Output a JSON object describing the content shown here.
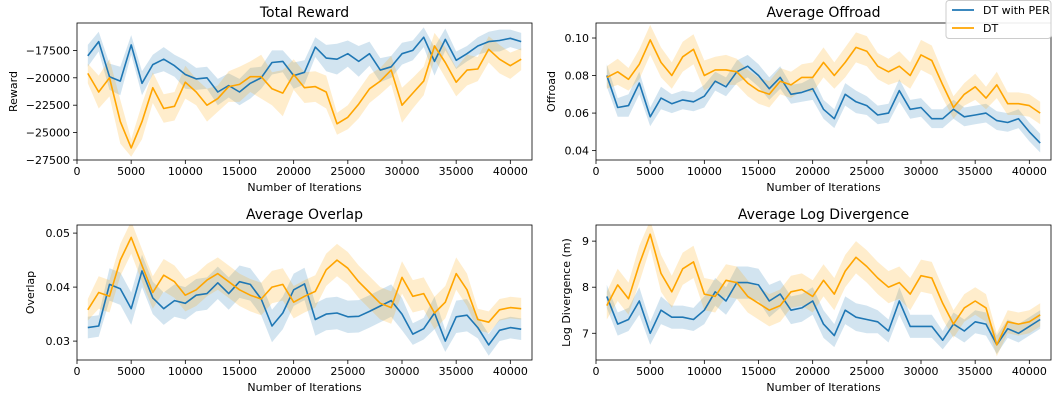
{
  "colors": {
    "blue": "#1f77b4",
    "orange": "#ffa500"
  },
  "legend": {
    "placement": "top-right",
    "entries": [
      {
        "label": "DT with PER",
        "color": "#1f77b4"
      },
      {
        "label": "DT",
        "color": "#ffa500"
      }
    ]
  },
  "chart_data": [
    {
      "type": "line",
      "title": "Total Reward",
      "xlabel": "Number of Iterations",
      "ylabel": "Reward",
      "xlim": [
        0,
        42000
      ],
      "ylim": [
        -27500,
        -15000
      ],
      "xticks": [
        0,
        5000,
        10000,
        15000,
        20000,
        25000,
        30000,
        35000,
        40000
      ],
      "yticks": [
        -27500,
        -25000,
        -22500,
        -20000,
        -17500
      ],
      "grid": false,
      "x": [
        1000,
        2000,
        3000,
        4000,
        5000,
        6000,
        7000,
        8000,
        9000,
        10000,
        11000,
        12000,
        13000,
        14000,
        15000,
        16000,
        17000,
        18000,
        19000,
        20000,
        21000,
        22000,
        23000,
        24000,
        25000,
        26000,
        27000,
        28000,
        29000,
        30000,
        31000,
        32000,
        33000,
        34000,
        35000,
        36000,
        37000,
        38000,
        39000,
        40000,
        41000
      ],
      "series": [
        {
          "name": "DT with PER",
          "color": "#1f77b4",
          "values": [
            -18000,
            -16700,
            -19900,
            -20300,
            -17000,
            -20500,
            -18800,
            -18300,
            -18900,
            -19700,
            -20100,
            -20000,
            -21300,
            -20700,
            -21300,
            -20500,
            -20000,
            -18600,
            -18500,
            -19800,
            -19500,
            -17200,
            -18200,
            -18300,
            -17800,
            -18500,
            -17800,
            -19300,
            -19000,
            -17800,
            -17500,
            -16300,
            -18500,
            -16500,
            -18400,
            -17800,
            -17100,
            -16700,
            -16600,
            -16400,
            -16700
          ],
          "band": [
            1000,
            900,
            1200,
            1300,
            900,
            1100,
            900,
            1100,
            1000,
            1300,
            1000,
            1000,
            1200,
            1100,
            1200,
            1400,
            1000,
            1100,
            1000,
            1200,
            1100,
            900,
            1200,
            1400,
            1200,
            1400,
            1100,
            1100,
            1000,
            1000,
            900,
            900,
            1300,
            1000,
            800,
            700,
            800,
            900,
            1000,
            800,
            800
          ]
        },
        {
          "name": "DT",
          "color": "#ffa500",
          "values": [
            -19600,
            -21300,
            -20000,
            -24000,
            -26400,
            -24000,
            -20900,
            -22800,
            -22600,
            -20400,
            -21300,
            -22500,
            -21900,
            -20800,
            -20600,
            -19900,
            -19900,
            -21000,
            -21400,
            -19700,
            -20900,
            -20800,
            -21300,
            -24200,
            -23600,
            -22400,
            -21000,
            -20300,
            -19300,
            -22500,
            -21400,
            -20300,
            -17100,
            -18600,
            -20400,
            -19300,
            -19200,
            -17400,
            -18300,
            -18900,
            -18300
          ],
          "band": [
            900,
            1500,
            1700,
            2000,
            800,
            1600,
            1400,
            1300,
            1300,
            1500,
            1200,
            1500,
            1200,
            1400,
            1600,
            1400,
            2000,
            1500,
            2100,
            1400,
            1400,
            1400,
            1500,
            1000,
            1100,
            1300,
            1300,
            1200,
            1300,
            1600,
            1400,
            1300,
            1200,
            1400,
            1300,
            1400,
            1100,
            1200,
            1300,
            1200,
            1000
          ]
        }
      ]
    },
    {
      "type": "line",
      "title": "Average Offroad",
      "xlabel": "Number of Iterations",
      "ylabel": "Offroad",
      "xlim": [
        0,
        42000
      ],
      "ylim": [
        0.035,
        0.108
      ],
      "xticks": [
        0,
        5000,
        10000,
        15000,
        20000,
        25000,
        30000,
        35000,
        40000
      ],
      "yticks": [
        0.04,
        0.06,
        0.08,
        0.1
      ],
      "ytick_labels": [
        "0.04",
        "0.06",
        "0.08",
        "0.10"
      ],
      "grid": false,
      "x": [
        1000,
        2000,
        3000,
        4000,
        5000,
        6000,
        7000,
        8000,
        9000,
        10000,
        11000,
        12000,
        13000,
        14000,
        15000,
        16000,
        17000,
        18000,
        19000,
        20000,
        21000,
        22000,
        23000,
        24000,
        25000,
        26000,
        27000,
        28000,
        29000,
        30000,
        31000,
        32000,
        33000,
        34000,
        35000,
        36000,
        37000,
        38000,
        39000,
        40000,
        41000
      ],
      "series": [
        {
          "name": "DT with PER",
          "color": "#1f77b4",
          "values": [
            0.08,
            0.063,
            0.064,
            0.076,
            0.058,
            0.068,
            0.065,
            0.067,
            0.066,
            0.069,
            0.077,
            0.074,
            0.082,
            0.085,
            0.08,
            0.073,
            0.079,
            0.07,
            0.071,
            0.073,
            0.062,
            0.057,
            0.07,
            0.066,
            0.064,
            0.059,
            0.06,
            0.072,
            0.062,
            0.063,
            0.057,
            0.057,
            0.062,
            0.058,
            0.059,
            0.06,
            0.056,
            0.055,
            0.057,
            0.05,
            0.044
          ],
          "band": [
            0.006,
            0.005,
            0.006,
            0.006,
            0.005,
            0.006,
            0.005,
            0.005,
            0.005,
            0.006,
            0.005,
            0.005,
            0.006,
            0.006,
            0.006,
            0.006,
            0.006,
            0.005,
            0.005,
            0.006,
            0.005,
            0.005,
            0.006,
            0.006,
            0.005,
            0.005,
            0.005,
            0.006,
            0.005,
            0.005,
            0.005,
            0.005,
            0.005,
            0.005,
            0.005,
            0.005,
            0.005,
            0.005,
            0.005,
            0.005,
            0.005
          ]
        },
        {
          "name": "DT",
          "color": "#ffa500",
          "values": [
            0.079,
            0.082,
            0.078,
            0.086,
            0.099,
            0.087,
            0.08,
            0.09,
            0.094,
            0.08,
            0.083,
            0.083,
            0.082,
            0.076,
            0.072,
            0.07,
            0.077,
            0.075,
            0.079,
            0.079,
            0.087,
            0.08,
            0.087,
            0.095,
            0.093,
            0.085,
            0.082,
            0.085,
            0.08,
            0.091,
            0.088,
            0.075,
            0.063,
            0.07,
            0.074,
            0.068,
            0.075,
            0.065,
            0.065,
            0.064,
            0.06
          ],
          "band": [
            0.006,
            0.007,
            0.006,
            0.008,
            0.008,
            0.008,
            0.007,
            0.008,
            0.008,
            0.008,
            0.007,
            0.008,
            0.007,
            0.007,
            0.007,
            0.007,
            0.007,
            0.007,
            0.007,
            0.008,
            0.008,
            0.007,
            0.008,
            0.008,
            0.008,
            0.007,
            0.007,
            0.008,
            0.007,
            0.008,
            0.008,
            0.007,
            0.006,
            0.006,
            0.007,
            0.006,
            0.007,
            0.006,
            0.006,
            0.006,
            0.006
          ]
        }
      ]
    },
    {
      "type": "line",
      "title": "Average Overlap",
      "xlabel": "Number of Iterations",
      "ylabel": "Overlap",
      "xlim": [
        0,
        42000
      ],
      "ylim": [
        0.0265,
        0.0515
      ],
      "xticks": [
        0,
        5000,
        10000,
        15000,
        20000,
        25000,
        30000,
        35000,
        40000
      ],
      "yticks": [
        0.03,
        0.04,
        0.05
      ],
      "ytick_labels": [
        "0.03",
        "0.04",
        "0.05"
      ],
      "grid": false,
      "x": [
        1000,
        2000,
        3000,
        4000,
        5000,
        6000,
        7000,
        8000,
        9000,
        10000,
        11000,
        12000,
        13000,
        14000,
        15000,
        16000,
        17000,
        18000,
        19000,
        20000,
        21000,
        22000,
        23000,
        24000,
        25000,
        26000,
        27000,
        28000,
        29000,
        30000,
        31000,
        32000,
        33000,
        34000,
        35000,
        36000,
        37000,
        38000,
        39000,
        40000,
        41000
      ],
      "series": [
        {
          "name": "DT with PER",
          "color": "#1f77b4",
          "values": [
            0.0325,
            0.0328,
            0.0405,
            0.0397,
            0.036,
            0.043,
            0.038,
            0.036,
            0.0375,
            0.037,
            0.0385,
            0.0388,
            0.0408,
            0.0388,
            0.041,
            0.0405,
            0.0378,
            0.0328,
            0.0352,
            0.0395,
            0.0406,
            0.034,
            0.035,
            0.0352,
            0.0345,
            0.0346,
            0.0355,
            0.0365,
            0.0375,
            0.035,
            0.0313,
            0.0323,
            0.0352,
            0.03,
            0.0345,
            0.0348,
            0.0325,
            0.0293,
            0.032,
            0.0325,
            0.0322
          ],
          "band": [
            0.002,
            0.002,
            0.003,
            0.003,
            0.003,
            0.003,
            0.003,
            0.003,
            0.003,
            0.003,
            0.003,
            0.003,
            0.003,
            0.003,
            0.003,
            0.003,
            0.003,
            0.003,
            0.003,
            0.003,
            0.003,
            0.003,
            0.003,
            0.003,
            0.003,
            0.003,
            0.003,
            0.003,
            0.003,
            0.003,
            0.002,
            0.002,
            0.003,
            0.002,
            0.003,
            0.003,
            0.002,
            0.002,
            0.002,
            0.002,
            0.002
          ]
        },
        {
          "name": "DT",
          "color": "#ffa500",
          "values": [
            0.0358,
            0.039,
            0.0383,
            0.045,
            0.0492,
            0.044,
            0.039,
            0.0422,
            0.041,
            0.0385,
            0.0395,
            0.0413,
            0.0425,
            0.041,
            0.0395,
            0.0385,
            0.0378,
            0.04,
            0.0405,
            0.0372,
            0.0383,
            0.0392,
            0.0432,
            0.045,
            0.0435,
            0.041,
            0.039,
            0.037,
            0.0362,
            0.0418,
            0.0383,
            0.0388,
            0.0352,
            0.0372,
            0.0425,
            0.0395,
            0.034,
            0.0335,
            0.0358,
            0.0362,
            0.036
          ],
          "band": [
            0.002,
            0.003,
            0.003,
            0.003,
            0.003,
            0.003,
            0.003,
            0.003,
            0.003,
            0.003,
            0.003,
            0.003,
            0.003,
            0.003,
            0.003,
            0.003,
            0.003,
            0.003,
            0.003,
            0.003,
            0.003,
            0.003,
            0.003,
            0.003,
            0.003,
            0.003,
            0.003,
            0.003,
            0.003,
            0.003,
            0.003,
            0.003,
            0.003,
            0.003,
            0.003,
            0.003,
            0.002,
            0.002,
            0.002,
            0.002,
            0.002
          ]
        }
      ]
    },
    {
      "type": "line",
      "title": "Average Log Divergence",
      "xlabel": "Number of Iterations",
      "ylabel": "Log Divergence (m)",
      "xlim": [
        0,
        42000
      ],
      "ylim": [
        6.42,
        9.35
      ],
      "xticks": [
        0,
        5000,
        10000,
        15000,
        20000,
        25000,
        30000,
        35000,
        40000
      ],
      "yticks": [
        7,
        8,
        9
      ],
      "ytick_labels": [
        "7",
        "8",
        "9"
      ],
      "grid": false,
      "x": [
        1000,
        2000,
        3000,
        4000,
        5000,
        6000,
        7000,
        8000,
        9000,
        10000,
        11000,
        12000,
        13000,
        14000,
        15000,
        16000,
        17000,
        18000,
        19000,
        20000,
        21000,
        22000,
        23000,
        24000,
        25000,
        26000,
        27000,
        28000,
        29000,
        30000,
        31000,
        32000,
        33000,
        34000,
        35000,
        36000,
        37000,
        38000,
        39000,
        40000,
        41000
      ],
      "series": [
        {
          "name": "DT with PER",
          "color": "#1f77b4",
          "values": [
            7.8,
            7.2,
            7.3,
            7.7,
            7.0,
            7.5,
            7.35,
            7.35,
            7.3,
            7.5,
            7.9,
            7.7,
            8.1,
            8.1,
            8.05,
            7.7,
            7.85,
            7.5,
            7.55,
            7.7,
            7.2,
            6.95,
            7.5,
            7.35,
            7.3,
            7.25,
            7.05,
            7.7,
            7.15,
            7.15,
            7.15,
            6.85,
            7.2,
            7.05,
            7.25,
            7.2,
            6.75,
            7.1,
            7.0,
            7.15,
            7.3
          ],
          "band": [
            0.25,
            0.25,
            0.25,
            0.3,
            0.25,
            0.3,
            0.25,
            0.25,
            0.25,
            0.3,
            0.3,
            0.3,
            0.35,
            0.35,
            0.35,
            0.35,
            0.3,
            0.3,
            0.3,
            0.3,
            0.3,
            0.25,
            0.3,
            0.3,
            0.3,
            0.25,
            0.25,
            0.3,
            0.25,
            0.25,
            0.25,
            0.2,
            0.25,
            0.25,
            0.25,
            0.25,
            0.2,
            0.2,
            0.2,
            0.2,
            0.2
          ]
        },
        {
          "name": "DT",
          "color": "#ffa500",
          "values": [
            7.6,
            8.05,
            7.75,
            8.5,
            9.15,
            8.3,
            7.9,
            8.4,
            8.55,
            7.85,
            7.8,
            8.15,
            8.1,
            7.8,
            7.65,
            7.5,
            7.6,
            7.9,
            7.95,
            7.8,
            8.15,
            7.85,
            8.35,
            8.65,
            8.45,
            8.2,
            8.0,
            8.1,
            7.85,
            8.25,
            8.2,
            7.65,
            7.2,
            7.55,
            7.7,
            7.55,
            6.75,
            7.25,
            7.2,
            7.25,
            7.4
          ],
          "band": [
            0.3,
            0.35,
            0.35,
            0.4,
            0.3,
            0.4,
            0.35,
            0.35,
            0.35,
            0.35,
            0.35,
            0.35,
            0.35,
            0.35,
            0.35,
            0.35,
            0.35,
            0.35,
            0.35,
            0.35,
            0.35,
            0.35,
            0.35,
            0.35,
            0.35,
            0.35,
            0.35,
            0.35,
            0.35,
            0.35,
            0.35,
            0.35,
            0.3,
            0.3,
            0.3,
            0.3,
            0.25,
            0.25,
            0.25,
            0.25,
            0.25
          ]
        }
      ]
    }
  ]
}
